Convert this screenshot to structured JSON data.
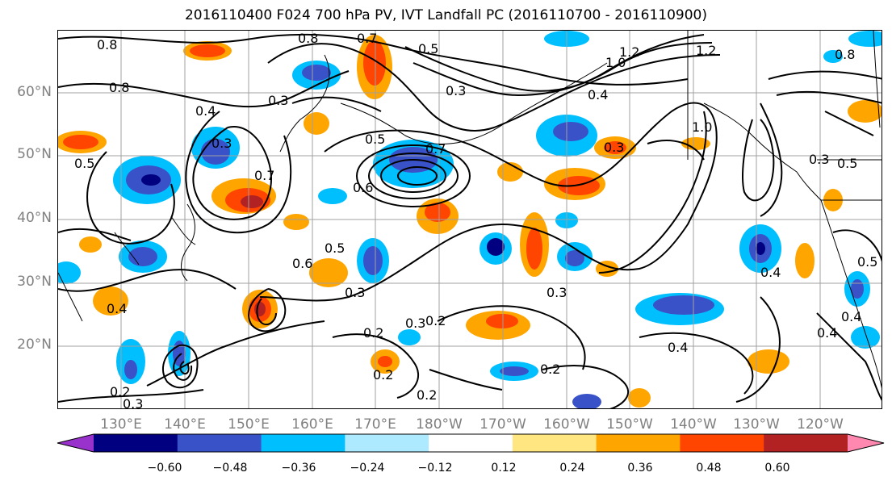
{
  "title": "2016110400 F024 700 hPa PV, IVT Landfall PC (2016110700 - 2016110900)",
  "map": {
    "lat_labels": [
      "60°N",
      "50°N",
      "40°N",
      "30°N",
      "20°N"
    ],
    "lon_labels": [
      "130°E",
      "140°E",
      "150°E",
      "160°E",
      "170°E",
      "180°W",
      "170°W",
      "160°W",
      "150°W",
      "140°W",
      "130°W",
      "120°W"
    ],
    "contour_labels": [
      "0.8",
      "0.8",
      "0.8",
      "0.7",
      "0.5",
      "0.3",
      "1.0",
      "1.2",
      "1.2",
      "0.8",
      "0.4",
      "0.3",
      "0.3",
      "0.4",
      "0.5",
      "0.7",
      "0.7",
      "0.5",
      "0.6",
      "1.0",
      "0.3",
      "0.3",
      "0.5",
      "0.5",
      "0.4",
      "0.3",
      "0.4",
      "0.2",
      "0.3",
      "0.2",
      "0.2",
      "0.4",
      "0.2",
      "0.6",
      "0.2",
      "0.3",
      "0.2",
      "0.4",
      "0.4",
      "0.5",
      "0.3"
    ]
  },
  "colorbar": {
    "tick_labels": [
      "−0.60",
      "−0.48",
      "−0.36",
      "−0.24",
      "−0.12",
      "0.12",
      "0.24",
      "0.36",
      "0.48",
      "0.60"
    ],
    "colors": [
      "#9932cc",
      "#000080",
      "#3a52c8",
      "#00bfff",
      "#aeeaff",
      "#ffffff",
      "#ffe680",
      "#ffa500",
      "#ff4500",
      "#b22222",
      "#ff88b0"
    ]
  },
  "colors": {
    "contour": "#000000",
    "grid": "#a0a0a0",
    "axis_label": "#808080"
  }
}
